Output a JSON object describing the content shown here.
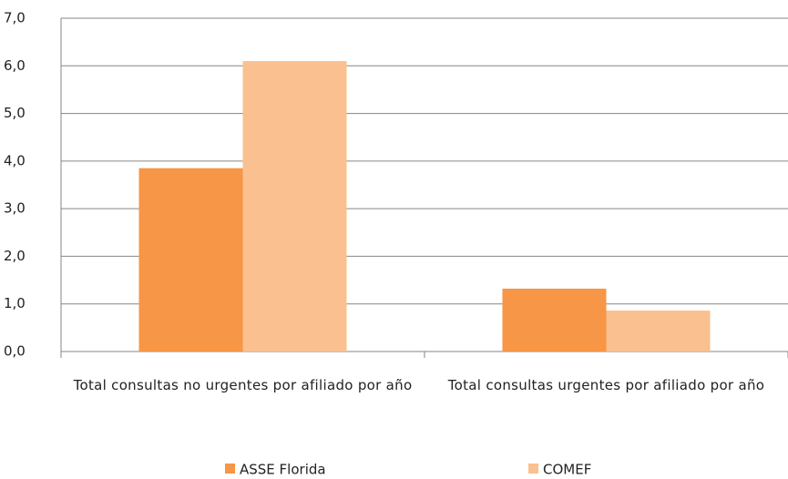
{
  "chart_data": {
    "type": "bar",
    "categories": [
      "Total consultas no urgentes por afiliado por año",
      "Total consultas urgentes por afiliado por año"
    ],
    "series": [
      {
        "name": "ASSE Florida",
        "color": "#f79646",
        "values": [
          3.85,
          1.32
        ]
      },
      {
        "name": "COMEF",
        "color": "#fac090",
        "values": [
          6.1,
          0.86
        ]
      }
    ],
    "ylim": [
      0,
      7
    ],
    "yticks": [
      {
        "value": 0,
        "label": "0,0"
      },
      {
        "value": 1,
        "label": "1,0"
      },
      {
        "value": 2,
        "label": "2,0"
      },
      {
        "value": 3,
        "label": "3,0"
      },
      {
        "value": 4,
        "label": "4,0"
      },
      {
        "value": 5,
        "label": "5,0"
      },
      {
        "value": 6,
        "label": "6,0"
      },
      {
        "value": 7,
        "label": "7,0"
      }
    ],
    "grid": true,
    "legend": "bottom"
  }
}
